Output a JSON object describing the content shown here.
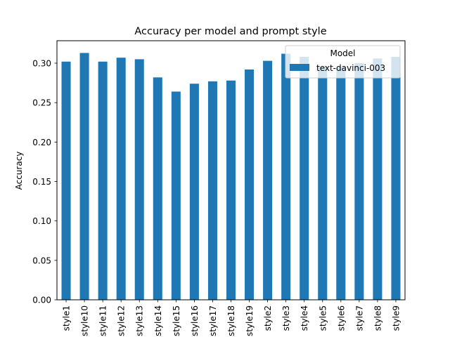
{
  "chart_data": {
    "type": "bar",
    "title": "Accuracy per model and prompt style",
    "xlabel": "",
    "ylabel": "Accuracy",
    "categories": [
      "style1",
      "style10",
      "style11",
      "style12",
      "style13",
      "style14",
      "style15",
      "style16",
      "style17",
      "style18",
      "style19",
      "style2",
      "style3",
      "style4",
      "style5",
      "style6",
      "style7",
      "style8",
      "style9"
    ],
    "series": [
      {
        "name": "text-davinci-003",
        "color": "#1f77b4",
        "values": [
          0.302,
          0.313,
          0.302,
          0.307,
          0.305,
          0.282,
          0.264,
          0.274,
          0.277,
          0.278,
          0.292,
          0.303,
          0.312,
          0.308,
          0.296,
          0.295,
          0.3,
          0.306,
          0.308
        ]
      }
    ],
    "ylim": [
      0,
      0.3285
    ],
    "yticks": [
      0.0,
      0.05,
      0.1,
      0.15,
      0.2,
      0.25,
      0.3
    ],
    "ytick_labels": [
      "0.00",
      "0.05",
      "0.10",
      "0.15",
      "0.20",
      "0.25",
      "0.30"
    ],
    "grid": false,
    "legend": {
      "title": "Model",
      "placement": "top-right",
      "entries": [
        "text-davinci-003"
      ]
    }
  }
}
